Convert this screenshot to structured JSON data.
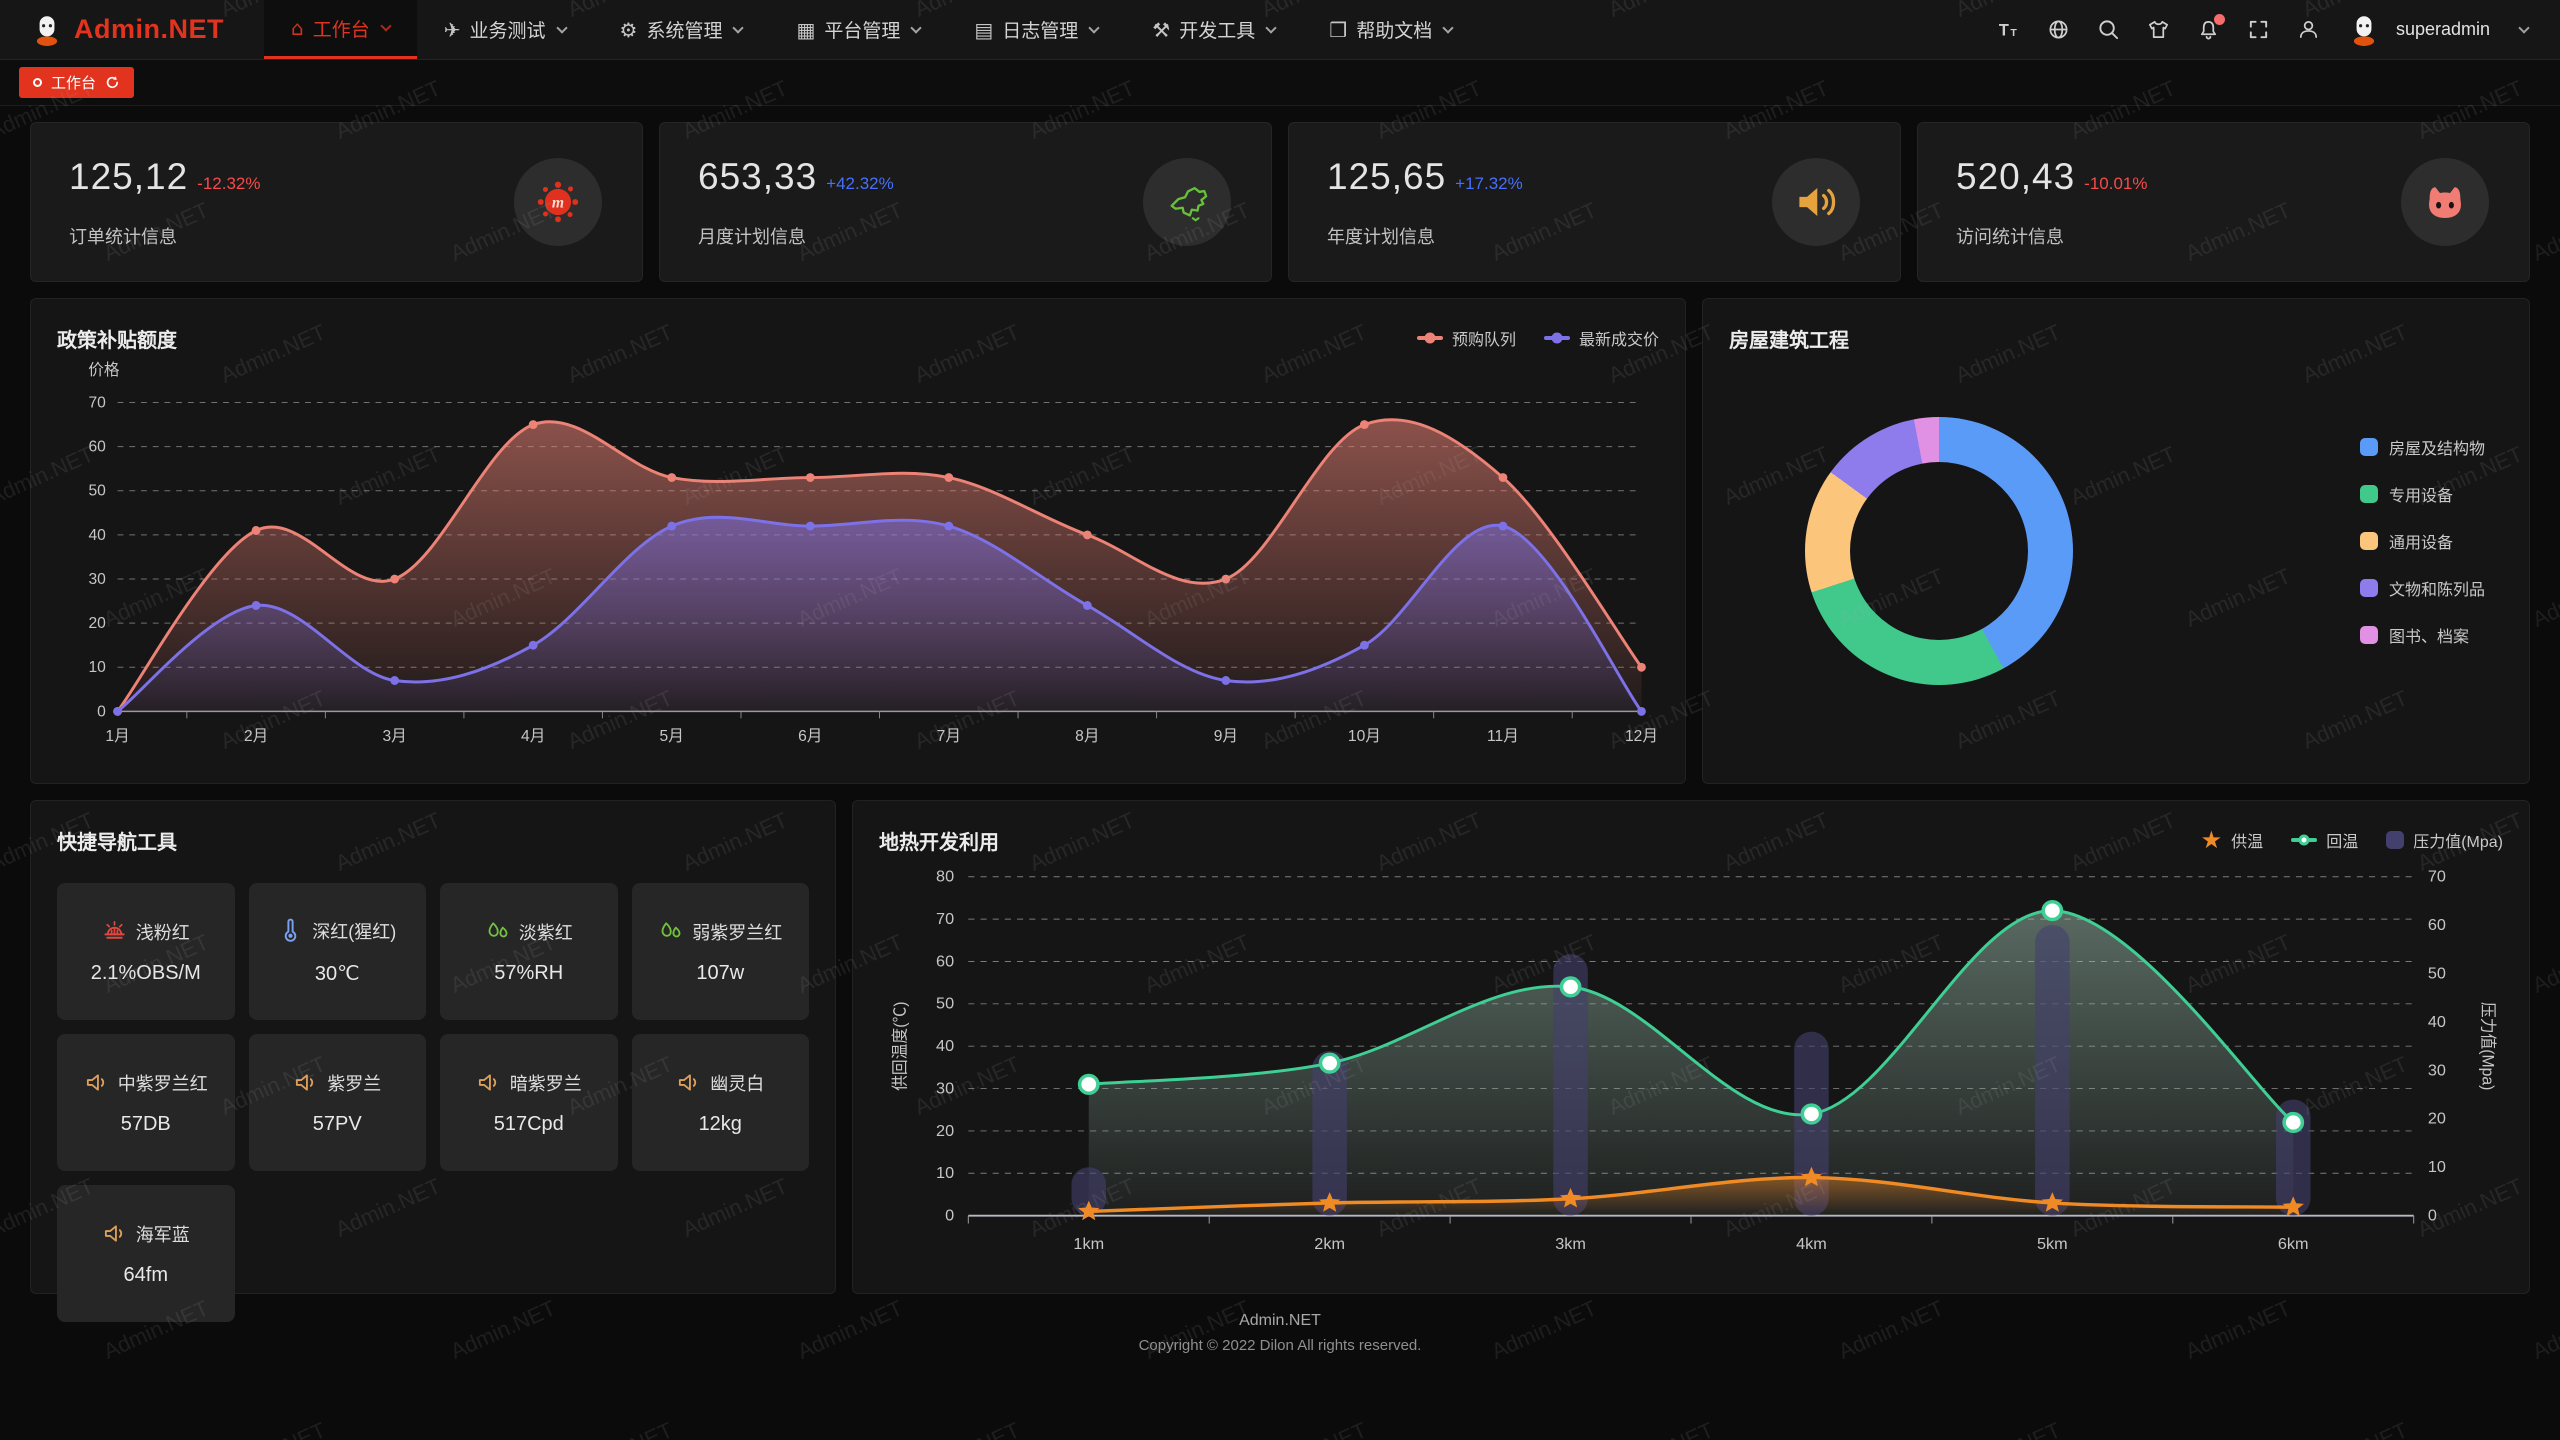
{
  "watermark": {
    "text": "Admin.NET"
  },
  "navbar": {
    "logo_text": "Admin.NET",
    "menu": [
      {
        "label": "工作台",
        "icon": "home",
        "active": true
      },
      {
        "label": "业务测试",
        "icon": "paper-plane",
        "active": false
      },
      {
        "label": "系统管理",
        "icon": "gear",
        "active": false
      },
      {
        "label": "平台管理",
        "icon": "grid",
        "active": false
      },
      {
        "label": "日志管理",
        "icon": "log-file",
        "active": false
      },
      {
        "label": "开发工具",
        "icon": "dev-chip",
        "active": false
      },
      {
        "label": "帮助文档",
        "icon": "book",
        "active": false
      }
    ],
    "username": "superadmin"
  },
  "tabbar": {
    "active_tab": "工作台"
  },
  "stats": [
    {
      "value": "125,12",
      "delta": "-12.32%",
      "trend": "down",
      "label": "订单统计信息",
      "icon": "paint-splat"
    },
    {
      "value": "653,33",
      "delta": "+42.32%",
      "trend": "up",
      "label": "月度计划信息",
      "icon": "china-map"
    },
    {
      "value": "125,65",
      "delta": "+17.32%",
      "trend": "up",
      "label": "年度计划信息",
      "icon": "speaker"
    },
    {
      "value": "520,43",
      "delta": "-10.01%",
      "trend": "down",
      "label": "访问统计信息",
      "icon": "cat"
    }
  ],
  "quicknav": {
    "title": "快捷导航工具",
    "items": [
      {
        "name": "浅粉红",
        "value": "2.1%OBS/M",
        "icon": "siren"
      },
      {
        "name": "深红(猩红)",
        "value": "30℃",
        "icon": "thermometer"
      },
      {
        "name": "淡紫红",
        "value": "57%RH",
        "icon": "humidity"
      },
      {
        "name": "弱紫罗兰红",
        "value": "107w",
        "icon": "humidity"
      },
      {
        "name": "中紫罗兰红",
        "value": "57DB",
        "icon": "speaker"
      },
      {
        "name": "紫罗兰",
        "value": "57PV",
        "icon": "speaker"
      },
      {
        "name": "暗紫罗兰",
        "value": "517Cpd",
        "icon": "speaker"
      },
      {
        "name": "幽灵白",
        "value": "12kg",
        "icon": "speaker"
      },
      {
        "name": "海军蓝",
        "value": "64fm",
        "icon": "speaker"
      }
    ]
  },
  "footer": {
    "line1": "Admin.NET",
    "line2": "Copyright © 2022 Dilon All rights reserved."
  },
  "chart_data": [
    {
      "id": "policy-line",
      "type": "area",
      "title": "政策补贴额度",
      "ylabel": "价格",
      "categories": [
        "1月",
        "2月",
        "3月",
        "4月",
        "5月",
        "6月",
        "7月",
        "8月",
        "9月",
        "10月",
        "11月",
        "12月"
      ],
      "ylim": [
        0,
        70
      ],
      "ytick": 10,
      "grid": "dashed",
      "legend_position": "top-right",
      "series": [
        {
          "name": "预购队列",
          "color": "#ED8377",
          "values": [
            0,
            41,
            30,
            65,
            53,
            53,
            53,
            40,
            30,
            65,
            53,
            10
          ]
        },
        {
          "name": "最新成交价",
          "color": "#7D71E8",
          "values": [
            0,
            24,
            7,
            15,
            42,
            42,
            42,
            24,
            7,
            15,
            42,
            0
          ]
        }
      ]
    },
    {
      "id": "housing-donut",
      "type": "pie",
      "title": "房屋建筑工程",
      "legend_position": "right",
      "segments": [
        {
          "label": "房屋及结构物",
          "value": 42,
          "color": "#5B9BF8"
        },
        {
          "label": "专用设备",
          "value": 28,
          "color": "#41C98C"
        },
        {
          "label": "通用设备",
          "value": 15,
          "color": "#FBC67C"
        },
        {
          "label": "文物和陈列品",
          "value": 12,
          "color": "#8E7CEC"
        },
        {
          "label": "图书、档案",
          "value": 3,
          "color": "#E091E3"
        }
      ]
    },
    {
      "id": "geothermal",
      "type": "line",
      "title": "地热开发利用",
      "categories": [
        "1km",
        "2km",
        "3km",
        "4km",
        "5km",
        "6km"
      ],
      "y_left": {
        "name": "供回温度(℃)",
        "min": 0,
        "max": 80,
        "tick": 10
      },
      "y_right": {
        "name": "压力值(Mpa)",
        "min": 0,
        "max": 70,
        "tick": 10
      },
      "grid": "dashed",
      "legend_position": "top-right",
      "series": [
        {
          "name": "供温",
          "type": "line",
          "axis": "left",
          "marker": "star",
          "color": "#F08A24",
          "values": [
            1,
            3,
            4,
            9,
            3,
            2
          ]
        },
        {
          "name": "回温",
          "type": "line",
          "axis": "left",
          "marker": "circle",
          "color": "#3FCF94",
          "values": [
            31,
            36,
            54,
            24,
            72,
            22
          ]
        },
        {
          "name": "压力值(Mpa)",
          "type": "bar",
          "axis": "right",
          "color": "#44406E",
          "values": [
            10,
            34,
            54,
            38,
            60,
            24
          ]
        }
      ]
    }
  ]
}
